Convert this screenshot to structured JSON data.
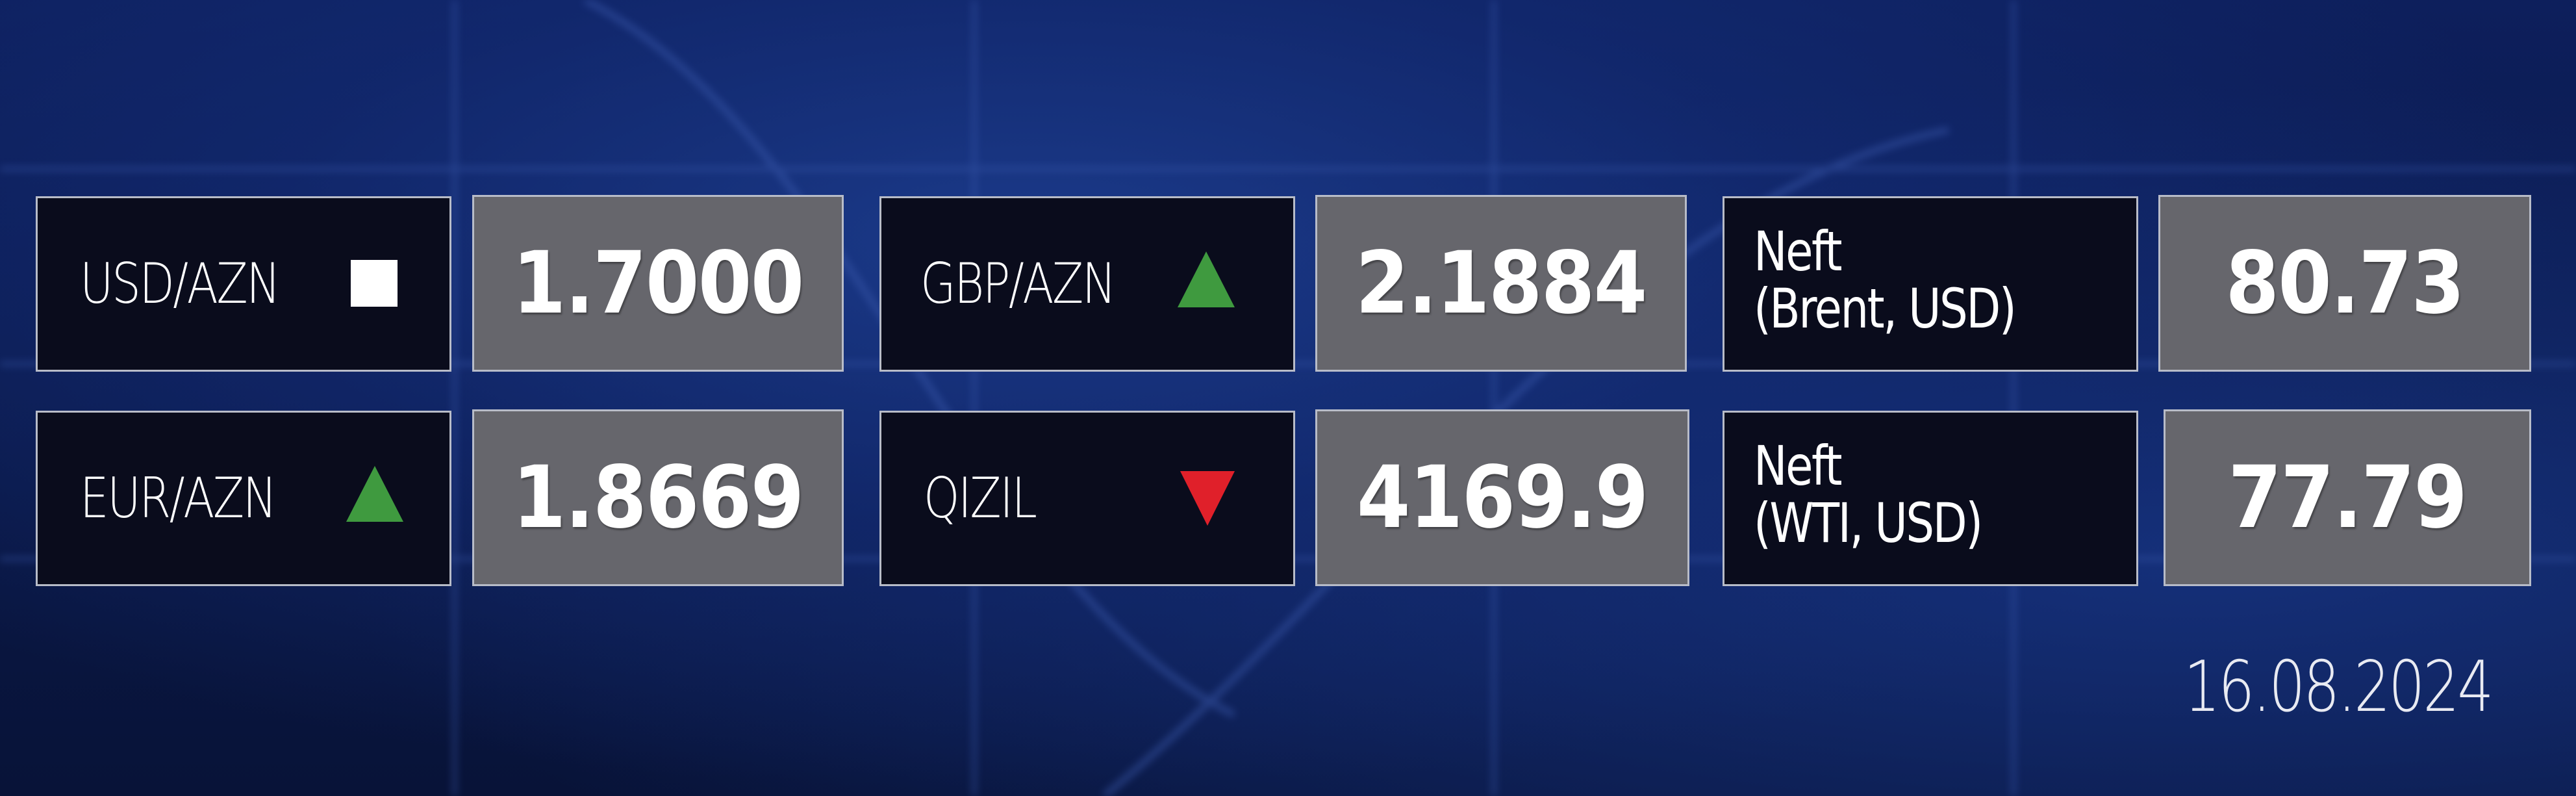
{
  "rates": [
    {
      "label": "USD/AZN",
      "value": "1.7000",
      "trend": "unchanged",
      "indicator_icon": "square-icon"
    },
    {
      "label": "EUR/AZN",
      "value": "1.8669",
      "trend": "up",
      "indicator_icon": "triangle-up-icon"
    },
    {
      "label": "GBP/AZN",
      "value": "2.1884",
      "trend": "up",
      "indicator_icon": "triangle-up-icon"
    },
    {
      "label": "QIZIL",
      "value": "4169.9",
      "trend": "down",
      "indicator_icon": "triangle-down-icon"
    }
  ],
  "oil": [
    {
      "label_line1": "Neft",
      "label_line2": "(Brent, USD)",
      "value": "80.73"
    },
    {
      "label_line1": "Neft",
      "label_line2": "(WTI, USD)",
      "value": "77.79"
    }
  ],
  "date": "16.08.2024",
  "colors": {
    "background": "#0b1a4a",
    "label_box": "#0a0c1c",
    "value_box": "#66666c",
    "up": "#3f9a3f",
    "down": "#e0202a",
    "unchanged": "#ffffff"
  }
}
